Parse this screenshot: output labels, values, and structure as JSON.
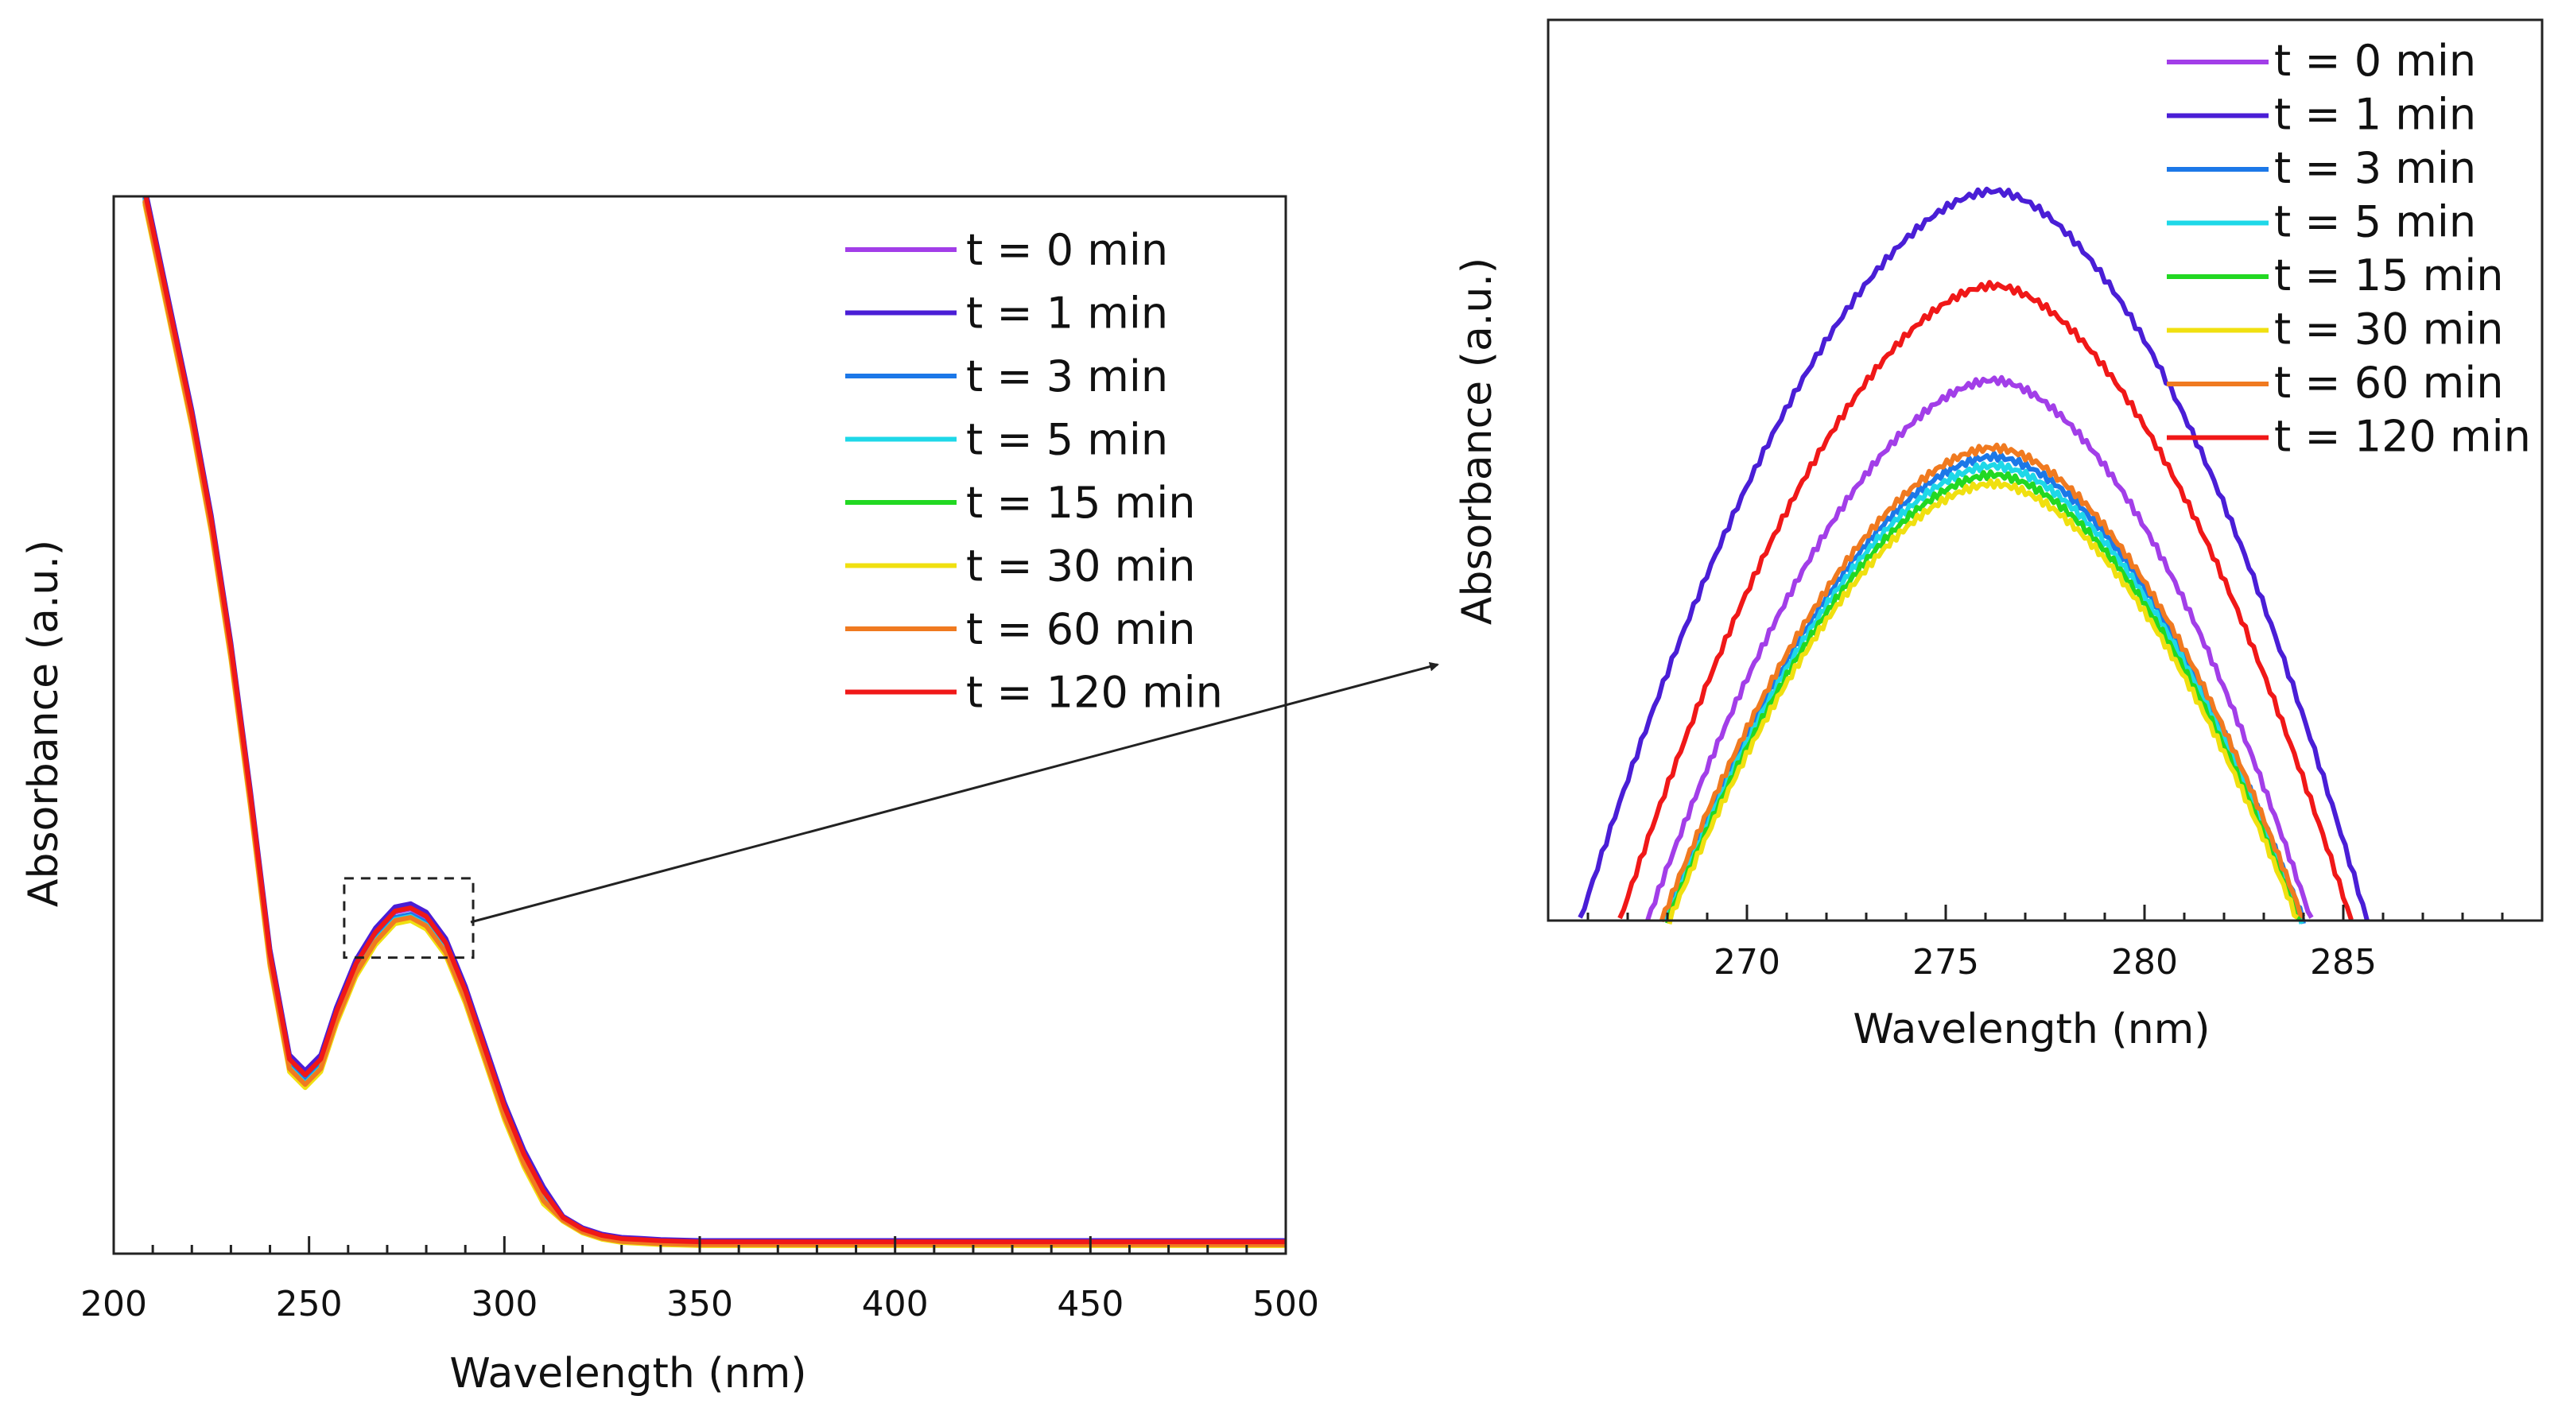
{
  "chart_data": [
    {
      "id": "main",
      "type": "line",
      "title": "",
      "xlabel": "Wavelength (nm)",
      "ylabel": "Absorbance (a.u.)",
      "xlim": [
        200,
        500
      ],
      "ylim": [
        0,
        1
      ],
      "xticks": [
        200,
        250,
        300,
        350,
        400,
        450,
        500
      ],
      "xtick_labels": [
        "200",
        "250",
        "300",
        "350",
        "400",
        "450",
        "500"
      ],
      "y_tick_labels_shown": false,
      "legend_position": "top-right",
      "grid": false,
      "series": [
        {
          "name": "t = 0 min",
          "color": "#a23ee8",
          "offset": 0.003
        },
        {
          "name": "t = 1 min",
          "color": "#4a1ed6",
          "offset": 0.008
        },
        {
          "name": "t = 3 min",
          "color": "#1c78e8",
          "offset": -0.002
        },
        {
          "name": "t = 5 min",
          "color": "#1ed8e8",
          "offset": -0.004
        },
        {
          "name": "t = 15 min",
          "color": "#22d822",
          "offset": -0.006
        },
        {
          "name": "t = 30 min",
          "color": "#f0e010",
          "offset": -0.008
        },
        {
          "name": "t = 60 min",
          "color": "#f07a20",
          "offset": -0.005
        },
        {
          "name": "t = 120 min",
          "color": "#f01818",
          "offset": 0.004
        }
      ],
      "shape_points": {
        "x": [
          208,
          212,
          216,
          220,
          225,
          230,
          235,
          240,
          245,
          249,
          253,
          257,
          262,
          267,
          272,
          276,
          280,
          285,
          290,
          295,
          300,
          305,
          310,
          315,
          320,
          325,
          330,
          335,
          340,
          350,
          400,
          450,
          500
        ],
        "y": [
          1.0,
          0.93,
          0.86,
          0.79,
          0.69,
          0.57,
          0.43,
          0.28,
          0.18,
          0.165,
          0.18,
          0.225,
          0.27,
          0.3,
          0.32,
          0.323,
          0.315,
          0.29,
          0.245,
          0.19,
          0.135,
          0.09,
          0.055,
          0.033,
          0.022,
          0.016,
          0.013,
          0.012,
          0.011,
          0.01,
          0.01,
          0.01,
          0.01
        ]
      },
      "zoom_box": {
        "x": [
          259,
          292
        ],
        "y": [
          0.28,
          0.355
        ]
      }
    },
    {
      "id": "inset",
      "type": "line",
      "title": "",
      "xlabel": "Wavelength (nm)",
      "ylabel": "Absorbance (a.u.)",
      "xlim": [
        265,
        290
      ],
      "ylim": [
        0,
        1
      ],
      "xticks": [
        270,
        275,
        280,
        285
      ],
      "xtick_labels": [
        "270",
        "275",
        "280",
        "285"
      ],
      "y_tick_labels_shown": false,
      "legend_position": "top-right",
      "grid": false,
      "peak_x": 276.2,
      "series": [
        {
          "name": "t = 0 min",
          "color": "#a23ee8",
          "peak": 0.6,
          "x_left": 267.5,
          "x_right": 284.2
        },
        {
          "name": "t = 1 min",
          "color": "#4a1ed6",
          "peak": 0.81,
          "x_left": 265.8,
          "x_right": 285.6
        },
        {
          "name": "t = 3 min",
          "color": "#1c78e8",
          "peak": 0.515,
          "x_left": 267.9,
          "x_right": 284.0
        },
        {
          "name": "t = 5 min",
          "color": "#1ed8e8",
          "peak": 0.505,
          "x_left": 267.95,
          "x_right": 283.95
        },
        {
          "name": "t = 15 min",
          "color": "#22d822",
          "peak": 0.495,
          "x_left": 268.0,
          "x_right": 283.9
        },
        {
          "name": "t = 30 min",
          "color": "#f0e010",
          "peak": 0.485,
          "x_left": 268.05,
          "x_right": 283.85
        },
        {
          "name": "t = 60 min",
          "color": "#f07a20",
          "peak": 0.525,
          "x_left": 267.85,
          "x_right": 284.0
        },
        {
          "name": "t = 120 min",
          "color": "#f01818",
          "peak": 0.705,
          "x_left": 266.8,
          "x_right": 285.2
        }
      ]
    }
  ]
}
